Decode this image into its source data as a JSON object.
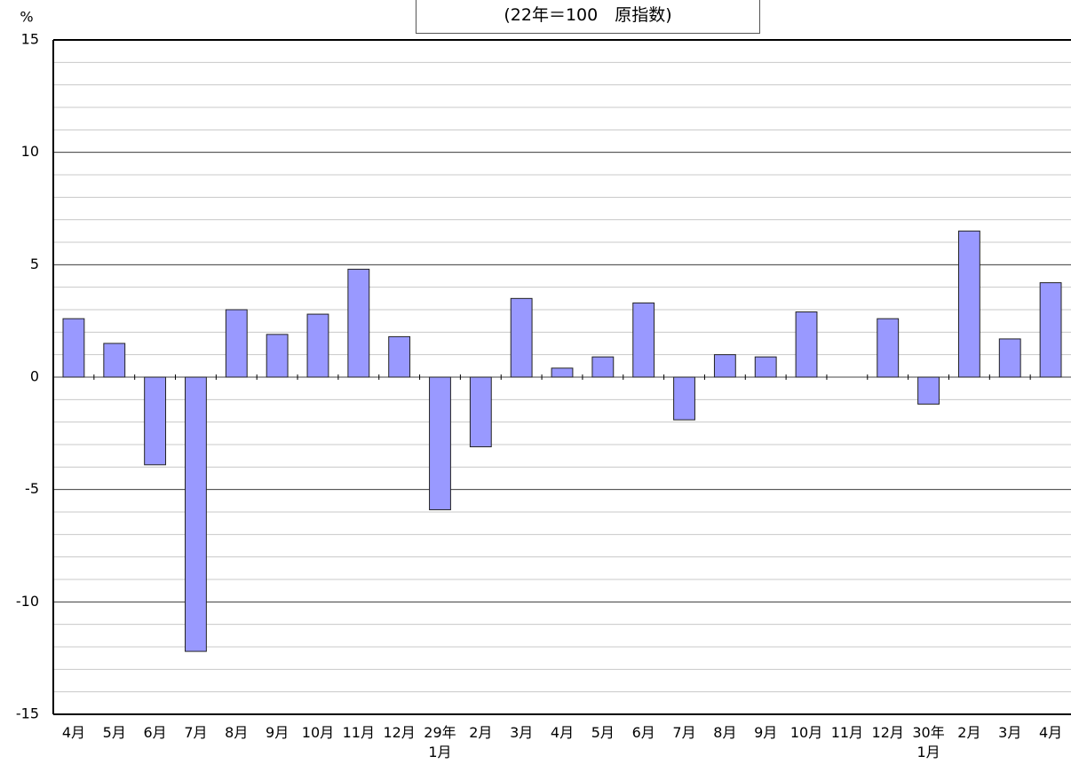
{
  "chart_data": {
    "type": "bar",
    "title": "(22年＝100　原指数)",
    "y_label": "%",
    "categories": [
      "4月",
      "5月",
      "6月",
      "7月",
      "8月",
      "9月",
      "10月",
      "11月",
      "12月",
      "29年\n1月",
      "2月",
      "3月",
      "4月",
      "5月",
      "6月",
      "7月",
      "8月",
      "9月",
      "10月",
      "11月",
      "12月",
      "30年\n1月",
      "2月",
      "3月",
      "4月"
    ],
    "values": [
      2.6,
      1.5,
      -3.9,
      -12.2,
      3.0,
      1.9,
      2.8,
      4.8,
      1.8,
      -5.9,
      -3.1,
      3.5,
      0.4,
      0.9,
      3.3,
      -1.9,
      1.0,
      0.9,
      2.9,
      0,
      2.6,
      -1.2,
      6.5,
      1.7,
      4.2
    ],
    "color": "#9999ff",
    "ylim": [
      -15,
      15
    ],
    "yticks": [
      -15,
      -10,
      -5,
      0,
      5,
      10,
      15
    ],
    "grid": true,
    "minor_grid_step": 1
  }
}
